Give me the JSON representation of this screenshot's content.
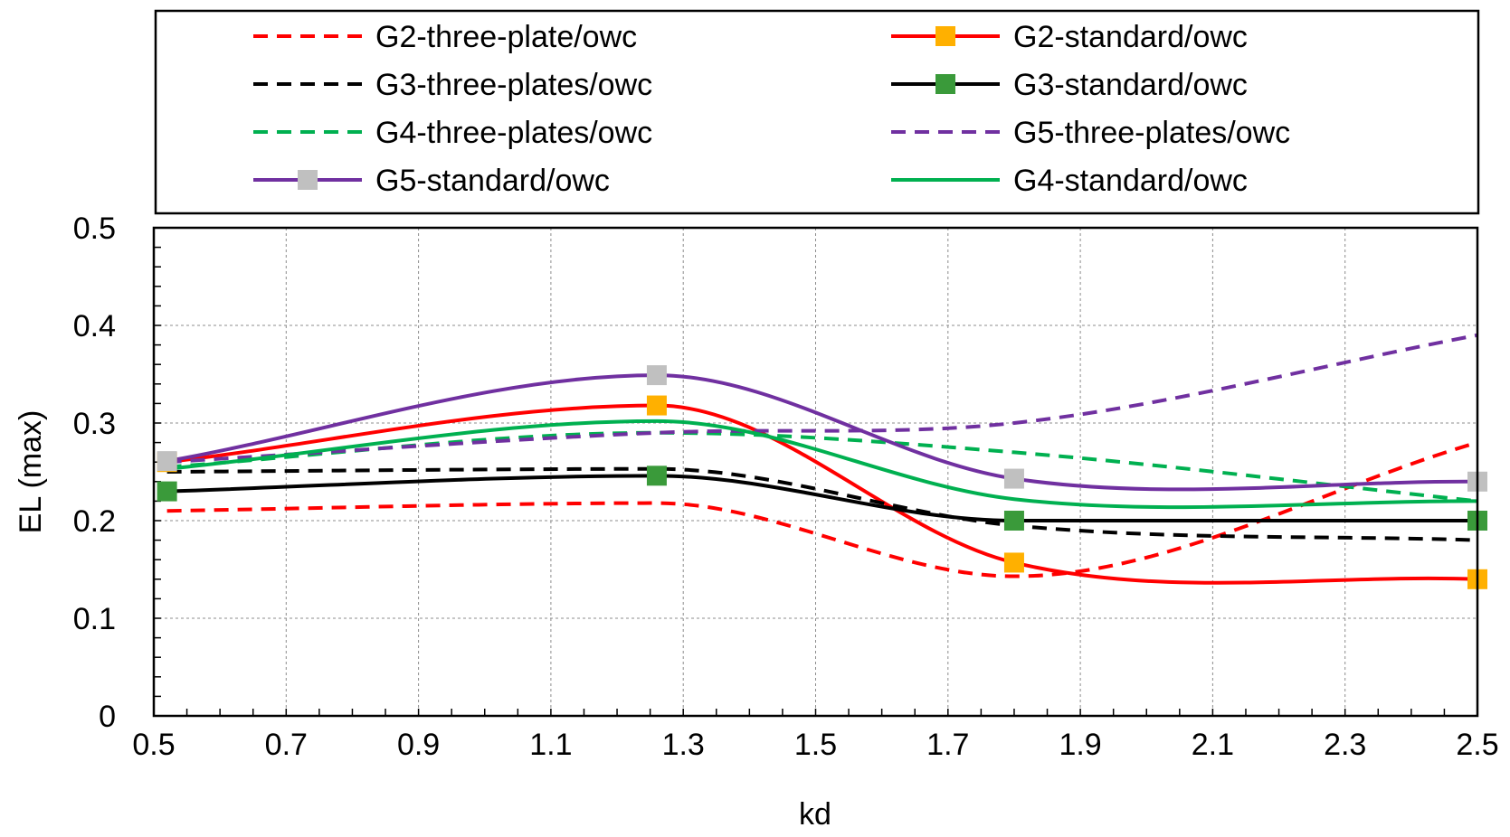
{
  "chart_data": {
    "type": "line",
    "title": "",
    "xlabel": "kd",
    "ylabel": "EL (max)",
    "xlim": [
      0.5,
      2.5
    ],
    "ylim": [
      0,
      0.5
    ],
    "xticks": [
      "0.5",
      "0.7",
      "0.9",
      "1.1",
      "1.3",
      "1.5",
      "1.7",
      "1.9",
      "2.1",
      "2.3",
      "2.5"
    ],
    "yticks": [
      "0",
      "0.1",
      "0.2",
      "0.3",
      "0.4",
      "0.5"
    ],
    "grid": true,
    "legend_position": "top",
    "series": [
      {
        "name": "G2-three-plate/owc",
        "color": "#ff0000",
        "dashed": true,
        "marker": "none",
        "x": [
          0.52,
          1.26,
          1.8,
          2.5
        ],
        "y": [
          0.21,
          0.218,
          0.143,
          0.28
        ]
      },
      {
        "name": "G2-standard/owc",
        "color": "#ff0000",
        "dashed": false,
        "marker": "square",
        "marker_color": "#ffb000",
        "x": [
          0.52,
          1.26,
          1.8,
          2.5
        ],
        "y": [
          0.26,
          0.318,
          0.157,
          0.14
        ]
      },
      {
        "name": "G3-three-plates/owc",
        "color": "#000000",
        "dashed": true,
        "marker": "none",
        "x": [
          0.52,
          1.26,
          1.8,
          2.5
        ],
        "y": [
          0.25,
          0.253,
          0.195,
          0.18
        ]
      },
      {
        "name": "G3-standard/owc",
        "color": "#000000",
        "dashed": false,
        "marker": "square",
        "marker_color": "#3a9a3a",
        "x": [
          0.52,
          1.26,
          1.8,
          2.5
        ],
        "y": [
          0.23,
          0.246,
          0.2,
          0.2
        ]
      },
      {
        "name": "G4-three-plates/owc",
        "color": "#00b050",
        "dashed": true,
        "marker": "none",
        "x": [
          0.52,
          1.26,
          1.8,
          2.5
        ],
        "y": [
          0.255,
          0.29,
          0.27,
          0.22
        ]
      },
      {
        "name": "G5-three-plates/owc",
        "color": "#7030a0",
        "dashed": true,
        "marker": "none",
        "x": [
          0.52,
          1.26,
          1.8,
          2.5
        ],
        "y": [
          0.26,
          0.29,
          0.3,
          0.39
        ]
      },
      {
        "name": "G5-standard/owc",
        "color": "#7030a0",
        "dashed": false,
        "marker": "square",
        "marker_color": "#c0c0c0",
        "x": [
          0.52,
          1.26,
          1.8,
          2.5
        ],
        "y": [
          0.261,
          0.349,
          0.243,
          0.24
        ]
      },
      {
        "name": "G4-standard/owc",
        "color": "#00b050",
        "dashed": false,
        "marker": "none",
        "x": [
          0.52,
          1.26,
          1.8,
          2.5
        ],
        "y": [
          0.253,
          0.302,
          0.222,
          0.22
        ]
      }
    ]
  }
}
